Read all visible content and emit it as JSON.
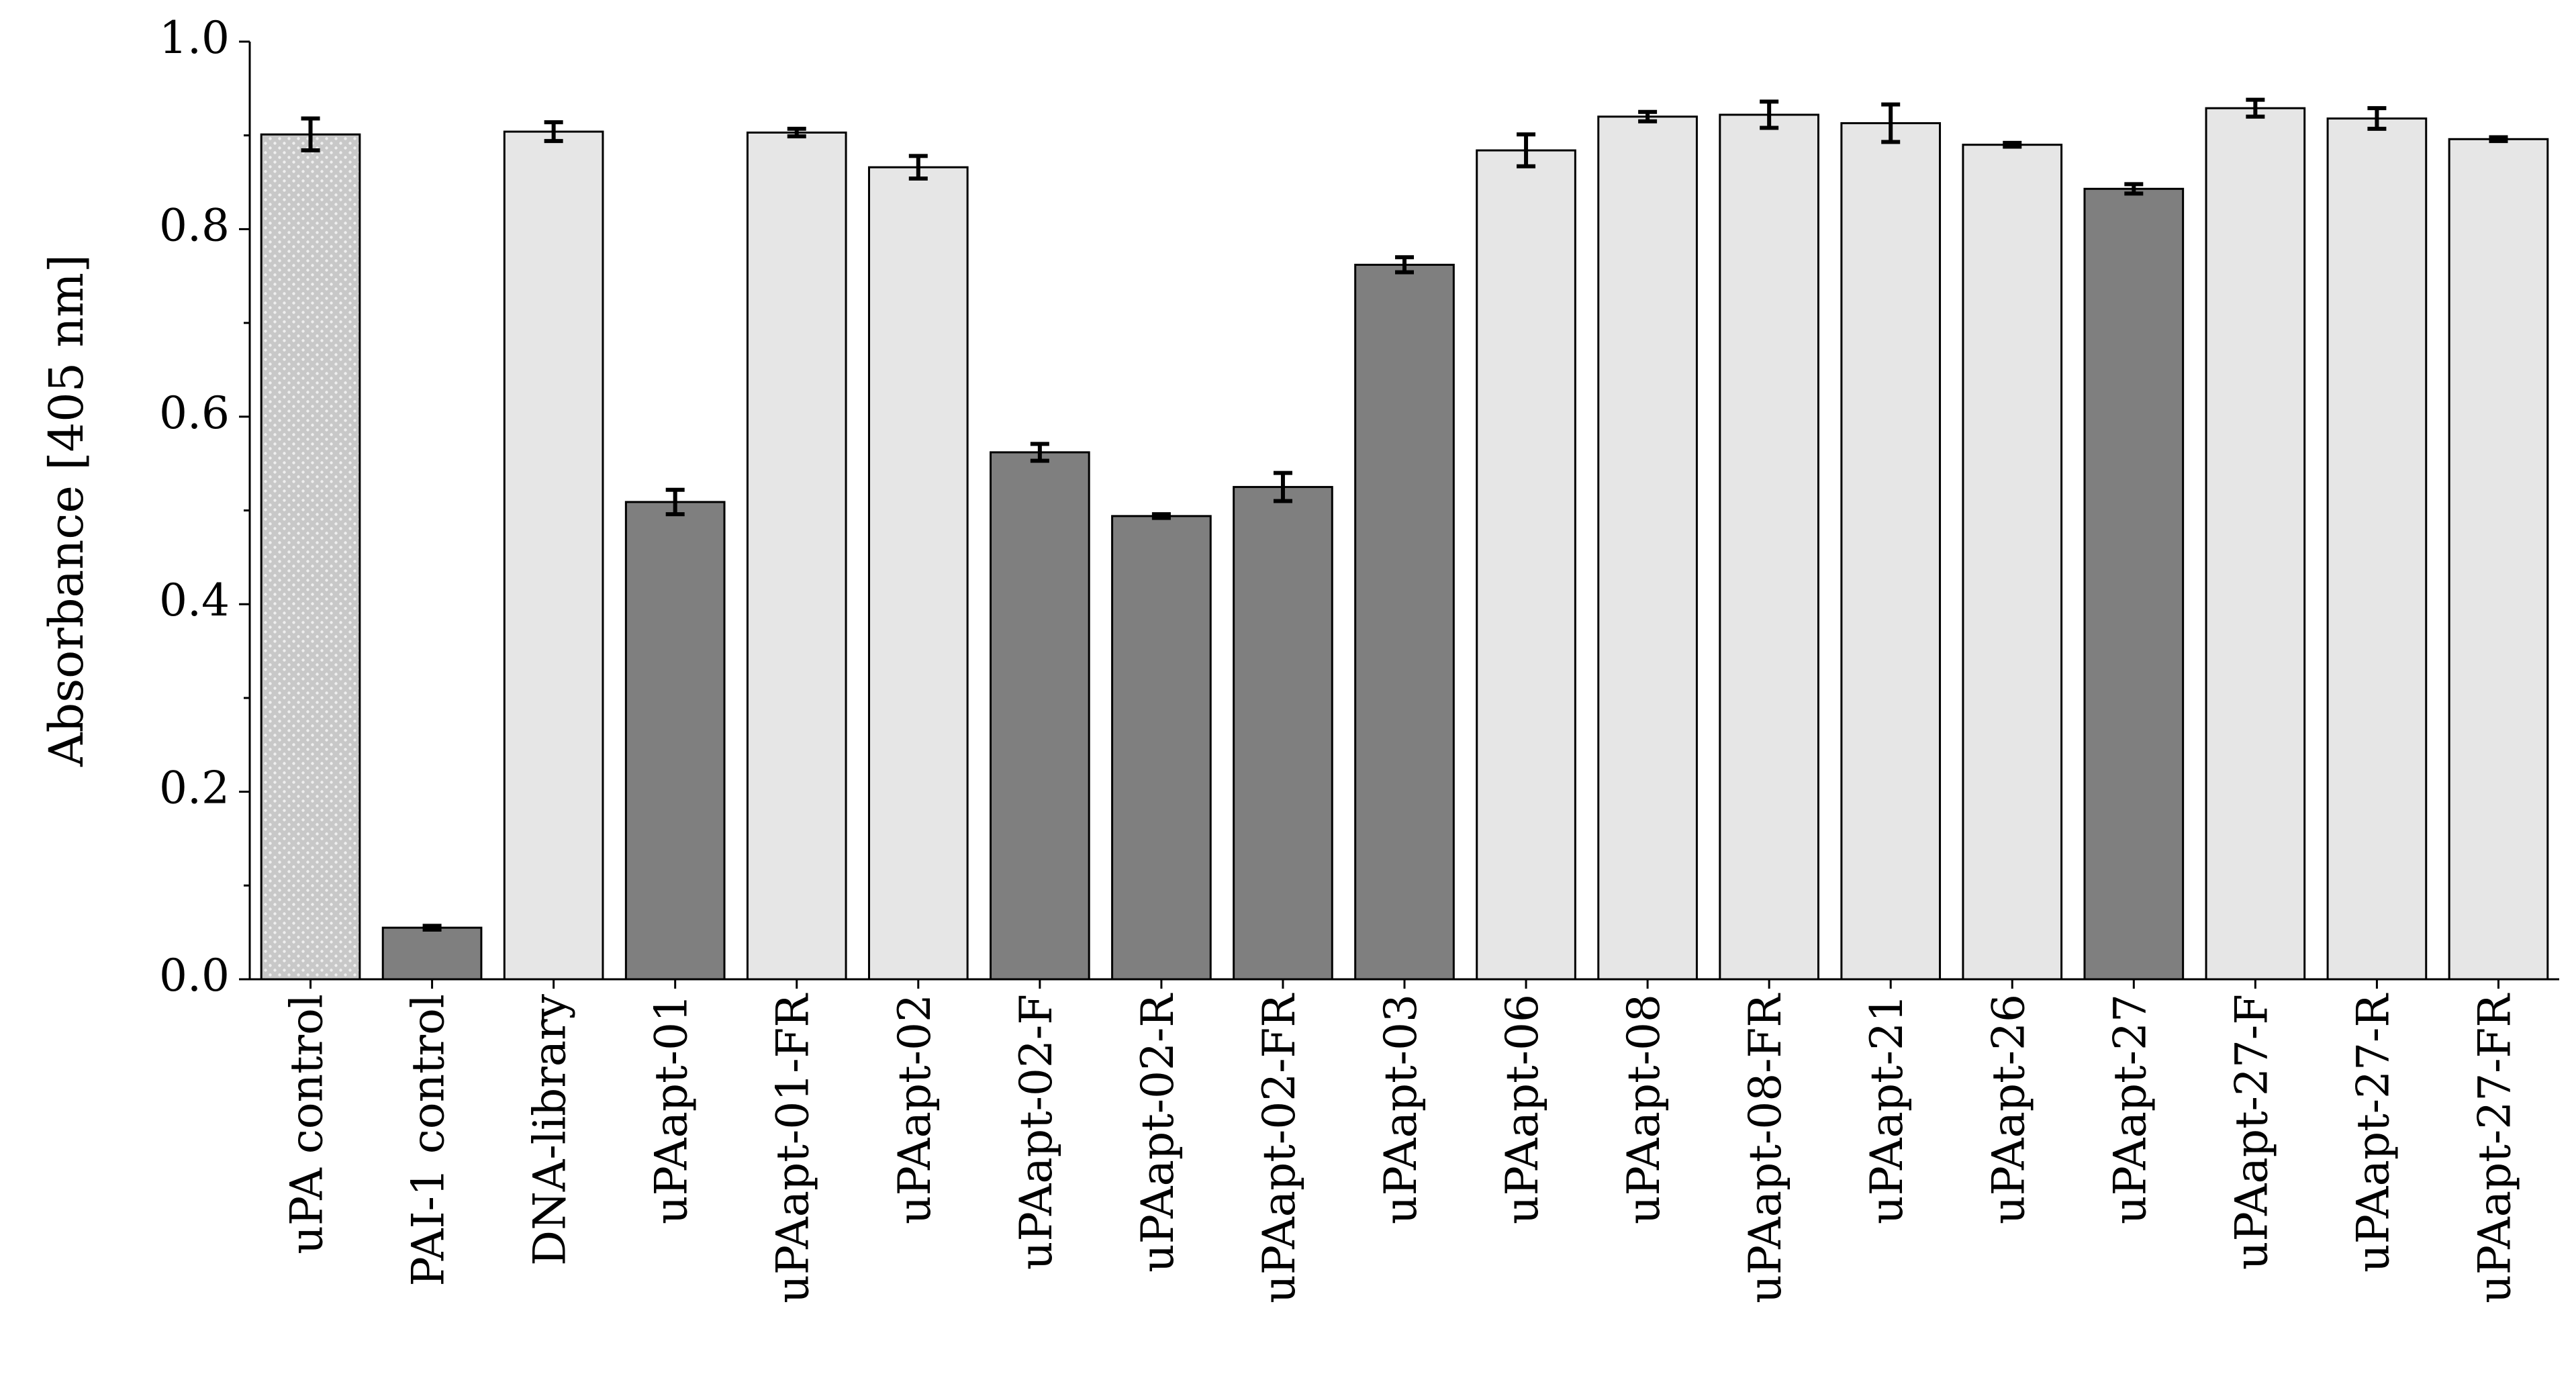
{
  "chart_data": {
    "type": "bar",
    "title": "",
    "xlabel": "",
    "ylabel": "Absorbance [405 nm]",
    "ylim": [
      0,
      1.0
    ],
    "yticks": [
      "0.0",
      "0.2",
      "0.4",
      "0.6",
      "0.8",
      "1.0"
    ],
    "yticks_values": [
      0,
      0.2,
      0.4,
      0.6,
      0.8,
      1.0
    ],
    "grid": false,
    "legend": "none",
    "categories": [
      "uPA control",
      "PAI-1 control",
      "DNA-library",
      "uPAapt-01",
      "uPAapt-01-FR",
      "uPAapt-02",
      "uPAapt-02-F",
      "uPAapt-02-R",
      "uPAapt-02-FR",
      "uPAapt-03",
      "uPAapt-06",
      "uPAapt-08",
      "uPAapt-08-FR",
      "uPAapt-21",
      "uPAapt-26",
      "uPAapt-27",
      "uPAapt-27-F",
      "uPAapt-27-R",
      "uPAapt-27-FR"
    ],
    "values": [
      0.901,
      0.055,
      0.904,
      0.509,
      0.903,
      0.866,
      0.562,
      0.494,
      0.525,
      0.762,
      0.884,
      0.92,
      0.922,
      0.913,
      0.89,
      0.843,
      0.929,
      0.918,
      0.896
    ],
    "errors": [
      0.017,
      0.002,
      0.01,
      0.013,
      0.004,
      0.012,
      0.009,
      0.002,
      0.015,
      0.008,
      0.017,
      0.005,
      0.014,
      0.02,
      0.002,
      0.005,
      0.009,
      0.011,
      0.002
    ],
    "bar_styles": [
      "dotted",
      "dark",
      "light",
      "dark",
      "light",
      "light",
      "dark",
      "dark",
      "dark",
      "dark",
      "light",
      "light",
      "light",
      "light",
      "light",
      "dark",
      "light",
      "light",
      "light"
    ],
    "colors": {
      "dark": "#7f7f7f",
      "light": "#e6e6e6",
      "dotted_bg": "#c8c8c8",
      "dotted_dot": "#efefef",
      "edge": "#000000"
    }
  }
}
